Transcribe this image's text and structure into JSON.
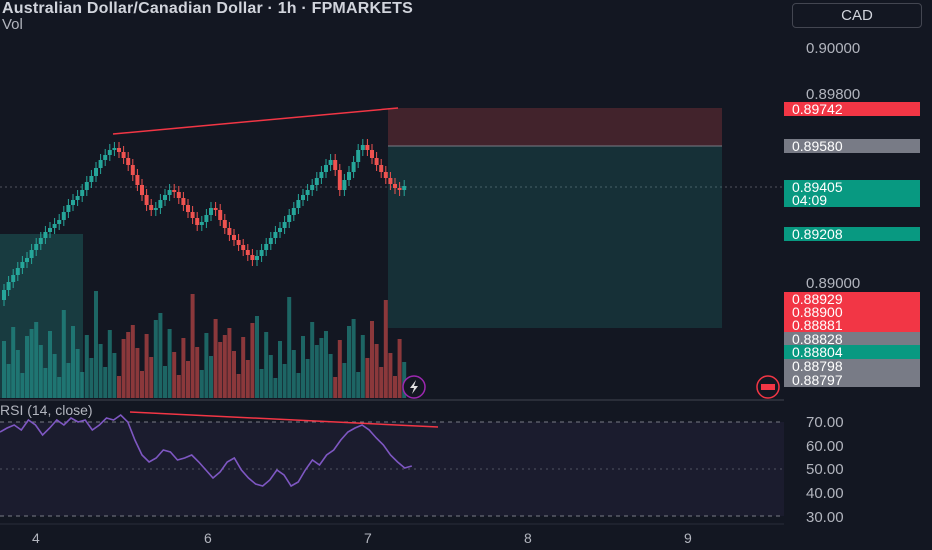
{
  "header": {
    "title": "Australian Dollar/Canadian Dollar · 1h · FPMARKETS",
    "volume_label": "Vol"
  },
  "currency_button": "CAD",
  "price_axis": {
    "ticks": [
      "0.90000",
      "0.89800",
      "0.89000"
    ]
  },
  "price_labels": {
    "stop": "0.89742",
    "entry": "0.89580",
    "current": "0.89405",
    "countdown": "04:09",
    "level_1": "0.89208",
    "level_2": "0.88929",
    "level_3": "0.88900",
    "level_4": "0.88881",
    "level_5": "0.88828",
    "level_6": "0.88804",
    "level_7": "0.88798",
    "level_8": "0.88797"
  },
  "rsi": {
    "title": "RSI (14, close)",
    "ticks": [
      "70.00",
      "60.00",
      "50.00",
      "40.00",
      "30.00"
    ]
  },
  "time_axis": {
    "ticks": [
      "4",
      "6",
      "7",
      "8",
      "9"
    ]
  },
  "colors": {
    "background": "#131722",
    "up": "#26a69a",
    "down": "#ef5350",
    "rsi_line": "#7e57c2",
    "trendline": "#f23645"
  }
}
